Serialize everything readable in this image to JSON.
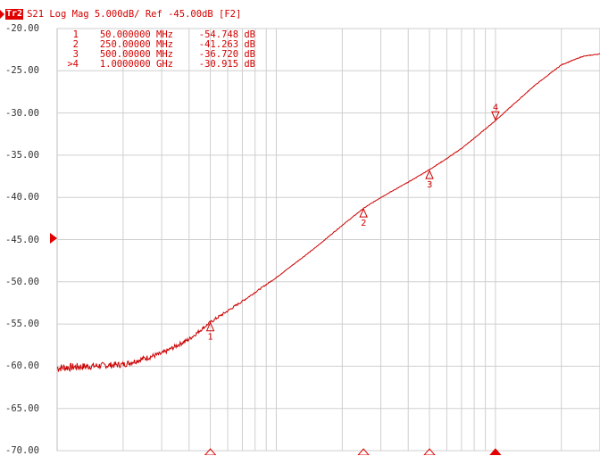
{
  "header": {
    "trace_badge": "Tr2",
    "trace_text": "S21 Log Mag 5.000dB/ Ref -45.00dB [F2]"
  },
  "markers": [
    {
      "id": "1",
      "freq": "50.000000 MHz",
      "value": "-54.748 dB",
      "freq_mhz": 50,
      "db": -54.748
    },
    {
      "id": "2",
      "freq": "250.00000 MHz",
      "value": "-41.263 dB",
      "freq_mhz": 250,
      "db": -41.263
    },
    {
      "id": "3",
      "freq": "500.00000 MHz",
      "value": "-36.720 dB",
      "freq_mhz": 500,
      "db": -36.72
    },
    {
      "id": ">4",
      "freq": "1.0000000 GHz",
      "value": "-30.915 dB",
      "freq_mhz": 1000,
      "db": -30.915
    }
  ],
  "chart_data": {
    "type": "line",
    "title": "",
    "xlabel": "",
    "ylabel": "",
    "x_scale": "log",
    "xlim_mhz": [
      10,
      3000
    ],
    "ylim": [
      -70,
      -20
    ],
    "yticks": [
      "-20.00",
      "-25.00",
      "-30.00",
      "-35.00",
      "-40.00",
      "-45.00",
      "-50.00",
      "-55.00",
      "-60.00",
      "-65.00",
      "-70.00"
    ],
    "reference_level": "-45.00",
    "grid": true,
    "trace_color": "#cc0000",
    "series": [
      {
        "x": [
          10,
          20,
          30,
          40,
          50,
          70,
          100,
          150,
          200,
          250,
          300,
          400,
          500,
          600,
          700,
          800,
          1000,
          1500,
          2000,
          2500,
          3000
        ],
        "y": [
          -60.2,
          -59.8,
          -58.5,
          -56.8,
          -54.8,
          -52.3,
          -49.5,
          -46.0,
          -43.3,
          -41.3,
          -40.0,
          -38.2,
          -36.7,
          -35.4,
          -34.2,
          -33.0,
          -30.9,
          -26.8,
          -24.3,
          -23.3,
          -23.0
        ]
      }
    ]
  }
}
